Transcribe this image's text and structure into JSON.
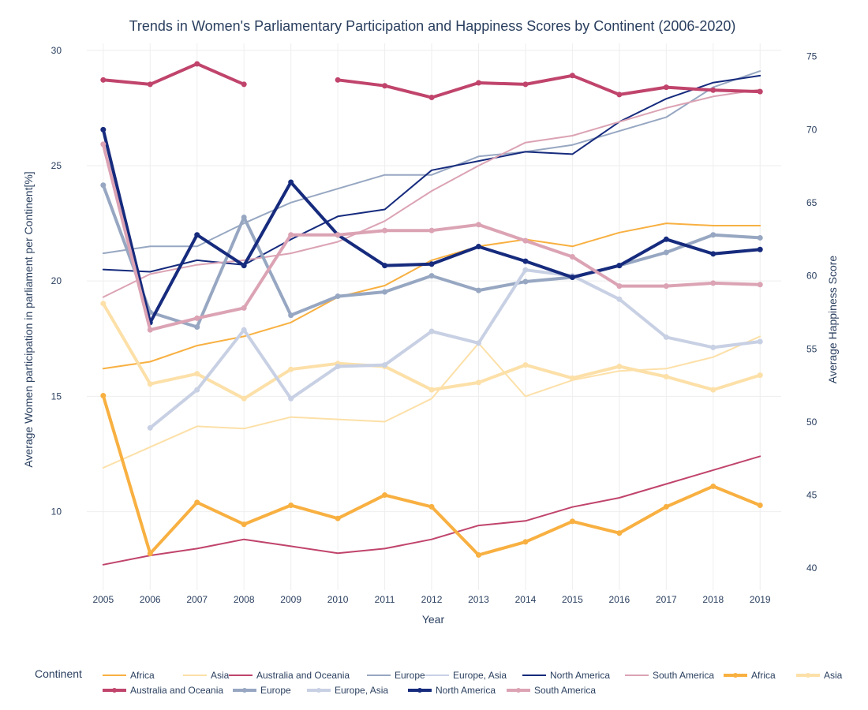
{
  "chart_data": {
    "type": "line",
    "title": "Trends in Women's Parliamentary Participation and Happiness Scores by Continent (2006-2020)",
    "xlabel": "Year",
    "ylabel_left": "Average Women participation in parliament per Continent[%]",
    "ylabel_right": "Average Happiness Score",
    "x": [
      2005,
      2006,
      2007,
      2008,
      2009,
      2010,
      2011,
      2012,
      2013,
      2014,
      2015,
      2016,
      2017,
      2018,
      2019
    ],
    "x_range": [
      2004.65,
      2019.45
    ],
    "y_left_range": [
      6.6,
      30.3
    ],
    "y_left_ticks": [
      10,
      15,
      20,
      25,
      30
    ],
    "y_right_range": [
      38.5,
      75.9
    ],
    "y_right_ticks": [
      40,
      45,
      50,
      55,
      60,
      65,
      70,
      75
    ],
    "grid": true,
    "legend_title": "Continent",
    "legend_position": "bottom",
    "series": [
      {
        "name": "Africa",
        "axis": "left",
        "color": "#f8b041",
        "width": 2,
        "values": [
          16.2,
          16.5,
          17.2,
          17.6,
          18.2,
          19.3,
          19.8,
          20.9,
          21.5,
          21.8,
          21.5,
          22.1,
          22.5,
          22.4,
          22.4
        ]
      },
      {
        "name": "Asia",
        "axis": "left",
        "color": "#fce0a8",
        "width": 2,
        "values": [
          11.9,
          12.8,
          13.7,
          13.6,
          14.1,
          14.0,
          13.9,
          14.9,
          17.3,
          15.0,
          15.7,
          16.1,
          16.2,
          16.7,
          17.6
        ]
      },
      {
        "name": "Australia and Oceania",
        "axis": "left",
        "color": "#c0446c",
        "width": 2,
        "values": [
          7.7,
          8.1,
          8.4,
          8.8,
          8.5,
          8.2,
          8.4,
          8.8,
          9.4,
          9.6,
          10.2,
          10.6,
          11.2,
          11.8,
          12.4
        ]
      },
      {
        "name": "Europe",
        "axis": "left",
        "color": "#97a7c2",
        "width": 2,
        "values": [
          21.2,
          21.5,
          21.5,
          22.5,
          23.4,
          24.0,
          24.6,
          24.6,
          25.4,
          25.6,
          25.9,
          26.5,
          27.1,
          28.4,
          29.1
        ]
      },
      {
        "name": "Europe, Asia",
        "axis": "left",
        "color": "#c8d0e4",
        "width": 2,
        "values": [
          null,
          null,
          null,
          null,
          null,
          null,
          null,
          null,
          null,
          null,
          null,
          null,
          null,
          null,
          null
        ]
      },
      {
        "name": "North America",
        "axis": "left",
        "color": "#162b7d",
        "width": 2,
        "values": [
          20.5,
          20.4,
          20.9,
          20.7,
          21.8,
          22.8,
          23.1,
          24.8,
          25.2,
          25.6,
          25.5,
          26.9,
          27.9,
          28.6,
          28.9
        ]
      },
      {
        "name": "South America",
        "axis": "left",
        "color": "#dba3b4",
        "width": 2,
        "values": [
          19.3,
          20.3,
          20.7,
          20.9,
          21.2,
          21.7,
          22.6,
          23.9,
          25.0,
          26.0,
          26.3,
          26.9,
          27.5,
          28.0,
          28.3
        ]
      },
      {
        "name": "Africa",
        "axis": "right",
        "color": "#f8b041",
        "width": 4,
        "values": [
          51.8,
          41.0,
          44.5,
          43.0,
          44.3,
          43.4,
          45.0,
          44.2,
          40.9,
          41.8,
          43.2,
          42.4,
          44.2,
          45.6,
          44.3
        ]
      },
      {
        "name": "Asia",
        "axis": "right",
        "color": "#fce0a8",
        "width": 4,
        "values": [
          58.1,
          52.6,
          53.3,
          51.6,
          53.6,
          54.0,
          53.8,
          52.2,
          52.7,
          53.9,
          53.0,
          53.8,
          53.1,
          52.2,
          53.2
        ]
      },
      {
        "name": "Australia and Oceania",
        "axis": "right",
        "color": "#c0446c",
        "width": 4,
        "values": [
          73.4,
          73.1,
          74.5,
          73.1,
          null,
          73.4,
          73.0,
          72.2,
          73.2,
          73.1,
          73.7,
          72.4,
          72.9,
          72.7,
          72.6
        ]
      },
      {
        "name": "Europe",
        "axis": "right",
        "color": "#97a7c2",
        "width": 4,
        "values": [
          66.2,
          57.5,
          56.5,
          64.0,
          57.3,
          58.6,
          58.9,
          60.0,
          59.0,
          59.6,
          59.9,
          60.7,
          61.6,
          62.8,
          62.6
        ]
      },
      {
        "name": "Europe, Asia",
        "axis": "right",
        "color": "#c8d0e4",
        "width": 4,
        "values": [
          null,
          49.6,
          52.2,
          56.3,
          51.6,
          53.8,
          53.9,
          56.2,
          55.4,
          60.4,
          60.0,
          58.4,
          55.8,
          55.1,
          55.5
        ]
      },
      {
        "name": "North America",
        "axis": "right",
        "color": "#162b7d",
        "width": 4,
        "values": [
          70.0,
          56.8,
          62.8,
          60.7,
          66.4,
          62.8,
          60.7,
          60.8,
          62.0,
          61.0,
          59.9,
          60.7,
          62.5,
          61.5,
          61.8
        ]
      },
      {
        "name": "South America",
        "axis": "right",
        "color": "#dba3b4",
        "width": 4,
        "values": [
          69.0,
          56.3,
          57.1,
          57.8,
          62.8,
          62.8,
          63.1,
          63.1,
          63.5,
          62.4,
          61.3,
          59.3,
          59.3,
          59.5,
          59.4
        ]
      }
    ]
  }
}
